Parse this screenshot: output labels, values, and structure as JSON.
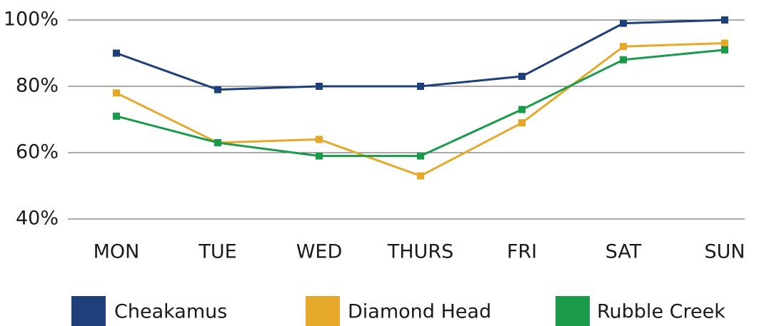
{
  "chart_data": {
    "type": "line",
    "categories": [
      "MON",
      "TUE",
      "WED",
      "THURS",
      "FRI",
      "SAT",
      "SUN"
    ],
    "series": [
      {
        "name": "Cheakamus",
        "color": "#1f3f7a",
        "values": [
          90,
          79,
          80,
          80,
          83,
          99,
          100
        ]
      },
      {
        "name": "Diamond Head",
        "color": "#e5a82a",
        "values": [
          78,
          63,
          64,
          53,
          69,
          92,
          93
        ]
      },
      {
        "name": "Rubble Creek",
        "color": "#1a9a4a",
        "values": [
          71,
          63,
          59,
          59,
          73,
          88,
          91
        ]
      }
    ],
    "ylim": [
      40,
      100
    ],
    "yticks": [
      {
        "value": 40,
        "label": "40%"
      },
      {
        "value": 60,
        "label": "60%"
      },
      {
        "value": 80,
        "label": "80%"
      },
      {
        "value": 100,
        "label": "100%"
      }
    ],
    "grid": true,
    "legend": "bottom"
  }
}
